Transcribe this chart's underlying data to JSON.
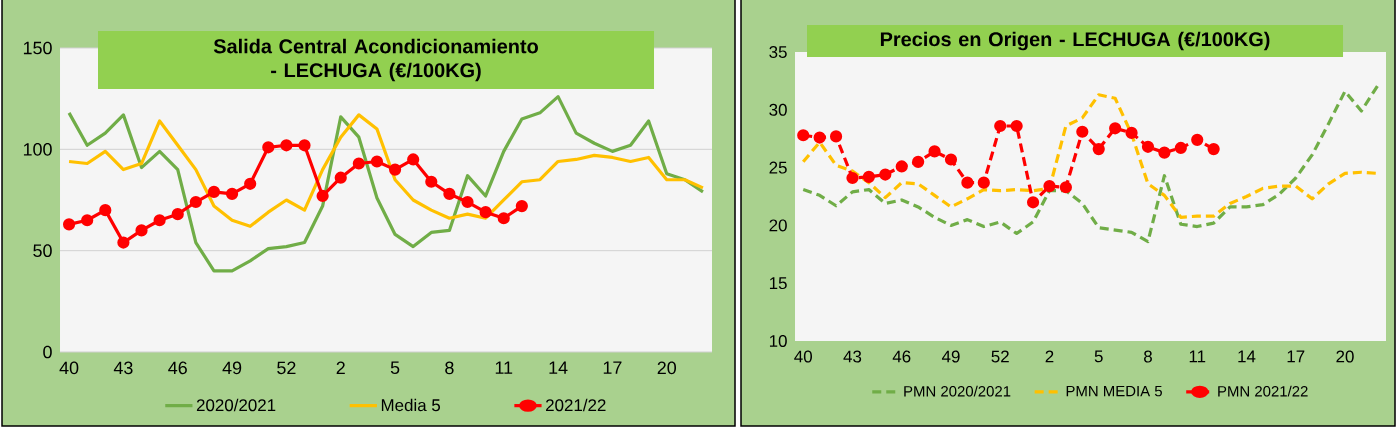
{
  "chart_data": [
    {
      "type": "line",
      "title": "Salida Central Acondicionamiento - LECHUGA (€/100KG)",
      "categories": [
        "40",
        null,
        null,
        "43",
        null,
        null,
        "46",
        null,
        null,
        "49",
        null,
        null,
        "52",
        null,
        null,
        "2",
        null,
        null,
        "5",
        null,
        null,
        "8",
        null,
        null,
        "11",
        null,
        null,
        "14",
        null,
        null,
        "17",
        null,
        null,
        "20",
        null,
        null
      ],
      "ylim": [
        0,
        150
      ],
      "yticks": [
        0,
        50,
        100,
        150
      ],
      "grid": "y",
      "legend": "bottom",
      "series": [
        {
          "name": "2020/2021",
          "color": "#70ad47",
          "marker": "none",
          "line_style": "solid",
          "values": [
            118,
            102,
            108,
            117,
            91,
            99,
            90,
            54,
            40,
            40,
            45,
            51,
            52,
            54,
            72,
            116,
            106,
            76,
            58,
            52,
            59,
            60,
            87,
            77,
            99,
            115,
            118,
            126,
            108,
            103,
            99,
            102,
            114,
            88,
            85,
            79
          ]
        },
        {
          "name": "Media 5",
          "color": "#ffc000",
          "marker": "none",
          "line_style": "solid",
          "values": [
            94,
            93,
            99,
            90,
            93,
            114,
            102,
            90,
            72,
            65,
            62,
            69,
            75,
            70,
            90,
            106,
            117,
            110,
            85,
            75,
            70,
            66,
            68,
            66,
            75,
            84,
            85,
            94,
            95,
            97,
            96,
            94,
            96,
            85,
            85,
            81
          ]
        },
        {
          "name": "2021/22",
          "color": "#ff0000",
          "marker": "circle",
          "line_style": "solid",
          "values": [
            63,
            65,
            70,
            54,
            60,
            65,
            68,
            74,
            79,
            78,
            83,
            101,
            102,
            102,
            77,
            86,
            93,
            94,
            90,
            95,
            84,
            78,
            74,
            69,
            66,
            72,
            null,
            null,
            null,
            null,
            null,
            null,
            null,
            null,
            null,
            null
          ]
        }
      ]
    },
    {
      "type": "line",
      "title": "Precios en Origen - LECHUGA (€/100KG)",
      "categories": [
        "40",
        null,
        null,
        "43",
        null,
        null,
        "46",
        null,
        null,
        "49",
        null,
        null,
        "52",
        null,
        null,
        "2",
        null,
        null,
        "5",
        null,
        null,
        "8",
        null,
        null,
        "11",
        null,
        null,
        "14",
        null,
        null,
        "17",
        null,
        null,
        "20",
        null,
        null
      ],
      "ylim": [
        10,
        35
      ],
      "yticks": [
        10,
        15,
        20,
        25,
        30,
        35
      ],
      "legend": "bottom",
      "series": [
        {
          "name": "PMN 2020/2021",
          "color": "#70ad47",
          "marker": "none",
          "line_style": "dashed",
          "values": [
            23.1,
            22.6,
            21.7,
            22.9,
            23.1,
            21.9,
            22.2,
            21.6,
            20.7,
            20.0,
            20.5,
            19.9,
            20.3,
            19.3,
            20.3,
            23.0,
            23.0,
            21.9,
            19.8,
            19.6,
            19.4,
            18.6,
            24.3,
            20.1,
            19.9,
            20.2,
            21.6,
            21.6,
            21.8,
            22.7,
            24.1,
            26.1,
            28.8,
            31.6,
            29.9,
            32.1
          ]
        },
        {
          "name": "PMN MEDIA 5",
          "color": "#ffc000",
          "marker": "none",
          "line_style": "dashed",
          "values": [
            25.5,
            27.2,
            25.2,
            24.7,
            23.7,
            22.4,
            23.7,
            23.6,
            22.6,
            21.6,
            22.3,
            23.1,
            23.0,
            23.1,
            23.0,
            23.2,
            28.6,
            29.3,
            31.3,
            31.0,
            27.9,
            23.6,
            22.6,
            20.7,
            20.8,
            20.8,
            21.9,
            22.5,
            23.2,
            23.4,
            23.4,
            22.3,
            23.6,
            24.5,
            24.6,
            24.5
          ]
        },
        {
          "name": "PMN 2021/22",
          "color": "#ff0000",
          "marker": "circle",
          "line_style": "dashed",
          "values": [
            27.8,
            27.6,
            27.7,
            24.1,
            24.2,
            24.4,
            25.1,
            25.5,
            26.4,
            25.7,
            23.7,
            23.7,
            28.6,
            28.6,
            22.0,
            23.4,
            23.3,
            28.1,
            26.6,
            28.4,
            28.0,
            26.8,
            26.3,
            26.7,
            27.4,
            26.6,
            null,
            null,
            null,
            null,
            null,
            null,
            null,
            null,
            null,
            null
          ]
        }
      ]
    }
  ]
}
